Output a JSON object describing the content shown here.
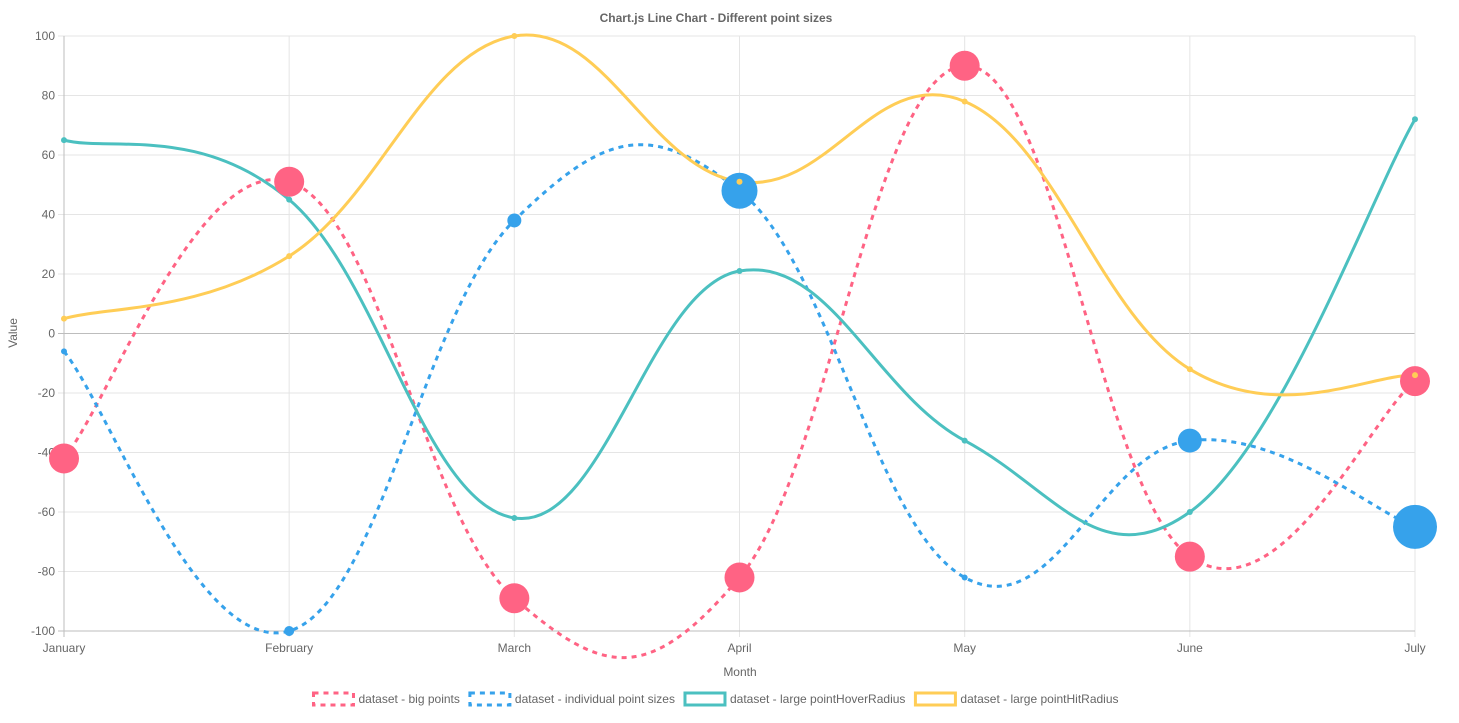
{
  "chart_data": {
    "type": "line",
    "title": "Chart.js Line Chart - Different point sizes",
    "xlabel": "Month",
    "ylabel": "Value",
    "categories": [
      "January",
      "February",
      "March",
      "April",
      "May",
      "June",
      "July"
    ],
    "ylim": [
      -100,
      100
    ],
    "yticks": [
      100,
      80,
      60,
      40,
      20,
      0,
      -20,
      -40,
      -60,
      -80,
      -100
    ],
    "grid": true,
    "legend_position": "bottom",
    "series": [
      {
        "name": "dataset - big points",
        "values": [
          -42,
          51,
          -89,
          -82,
          90,
          -75,
          -16
        ],
        "color": "#ff6384",
        "dashed": true,
        "point_sizes": [
          15,
          15,
          15,
          15,
          15,
          15,
          15
        ]
      },
      {
        "name": "dataset - individual point sizes",
        "values": [
          -6,
          -100,
          38,
          48,
          -82,
          -36,
          -65
        ],
        "color": "#36a2eb",
        "dashed": true,
        "point_sizes": [
          3,
          5,
          7,
          18,
          3,
          12,
          22
        ]
      },
      {
        "name": "dataset - large pointHoverRadius",
        "values": [
          65,
          45,
          -62,
          21,
          -36,
          -60,
          72
        ],
        "color": "#4bc0c0",
        "dashed": false,
        "point_sizes": [
          3,
          3,
          3,
          3,
          3,
          3,
          3
        ]
      },
      {
        "name": "dataset - large pointHitRadius",
        "values": [
          5,
          26,
          100,
          51,
          78,
          -12,
          -14
        ],
        "color": "#ffcd56",
        "dashed": false,
        "point_sizes": [
          3,
          3,
          3,
          3,
          3,
          3,
          3
        ]
      }
    ]
  }
}
